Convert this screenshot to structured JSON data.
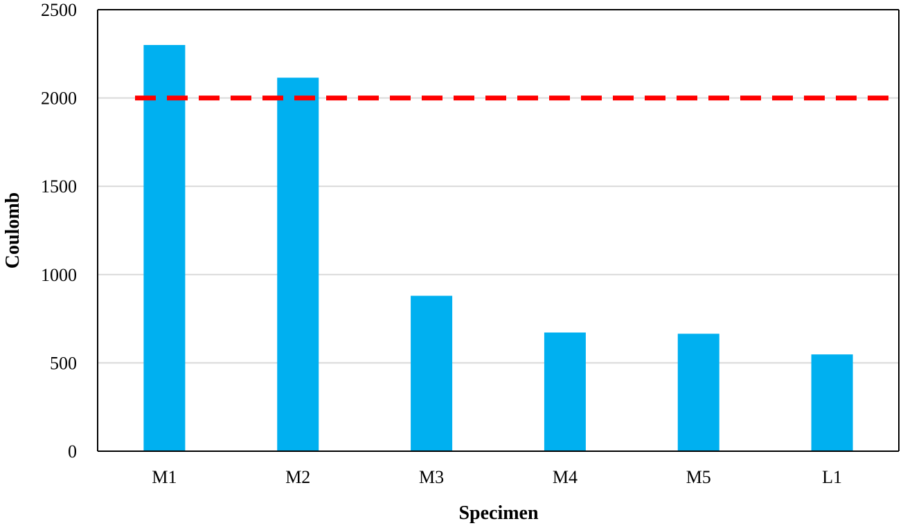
{
  "chart_data": {
    "type": "bar",
    "categories": [
      "M1",
      "M2",
      "M3",
      "M4",
      "M5",
      "L1"
    ],
    "values": [
      2300,
      2115,
      880,
      672,
      665,
      548
    ],
    "xlabel": "Specimen",
    "ylabel": "Coulomb",
    "ylim": [
      0,
      2500
    ],
    "yticks": [
      0,
      500,
      1000,
      1500,
      2000,
      2500
    ],
    "grid": true,
    "threshold": {
      "value": 2000,
      "style": "dashed"
    },
    "colors": {
      "bar": "#00B0F0",
      "threshold": "#FF0000",
      "grid": "#D9D9D9",
      "axis": "#000000"
    }
  }
}
